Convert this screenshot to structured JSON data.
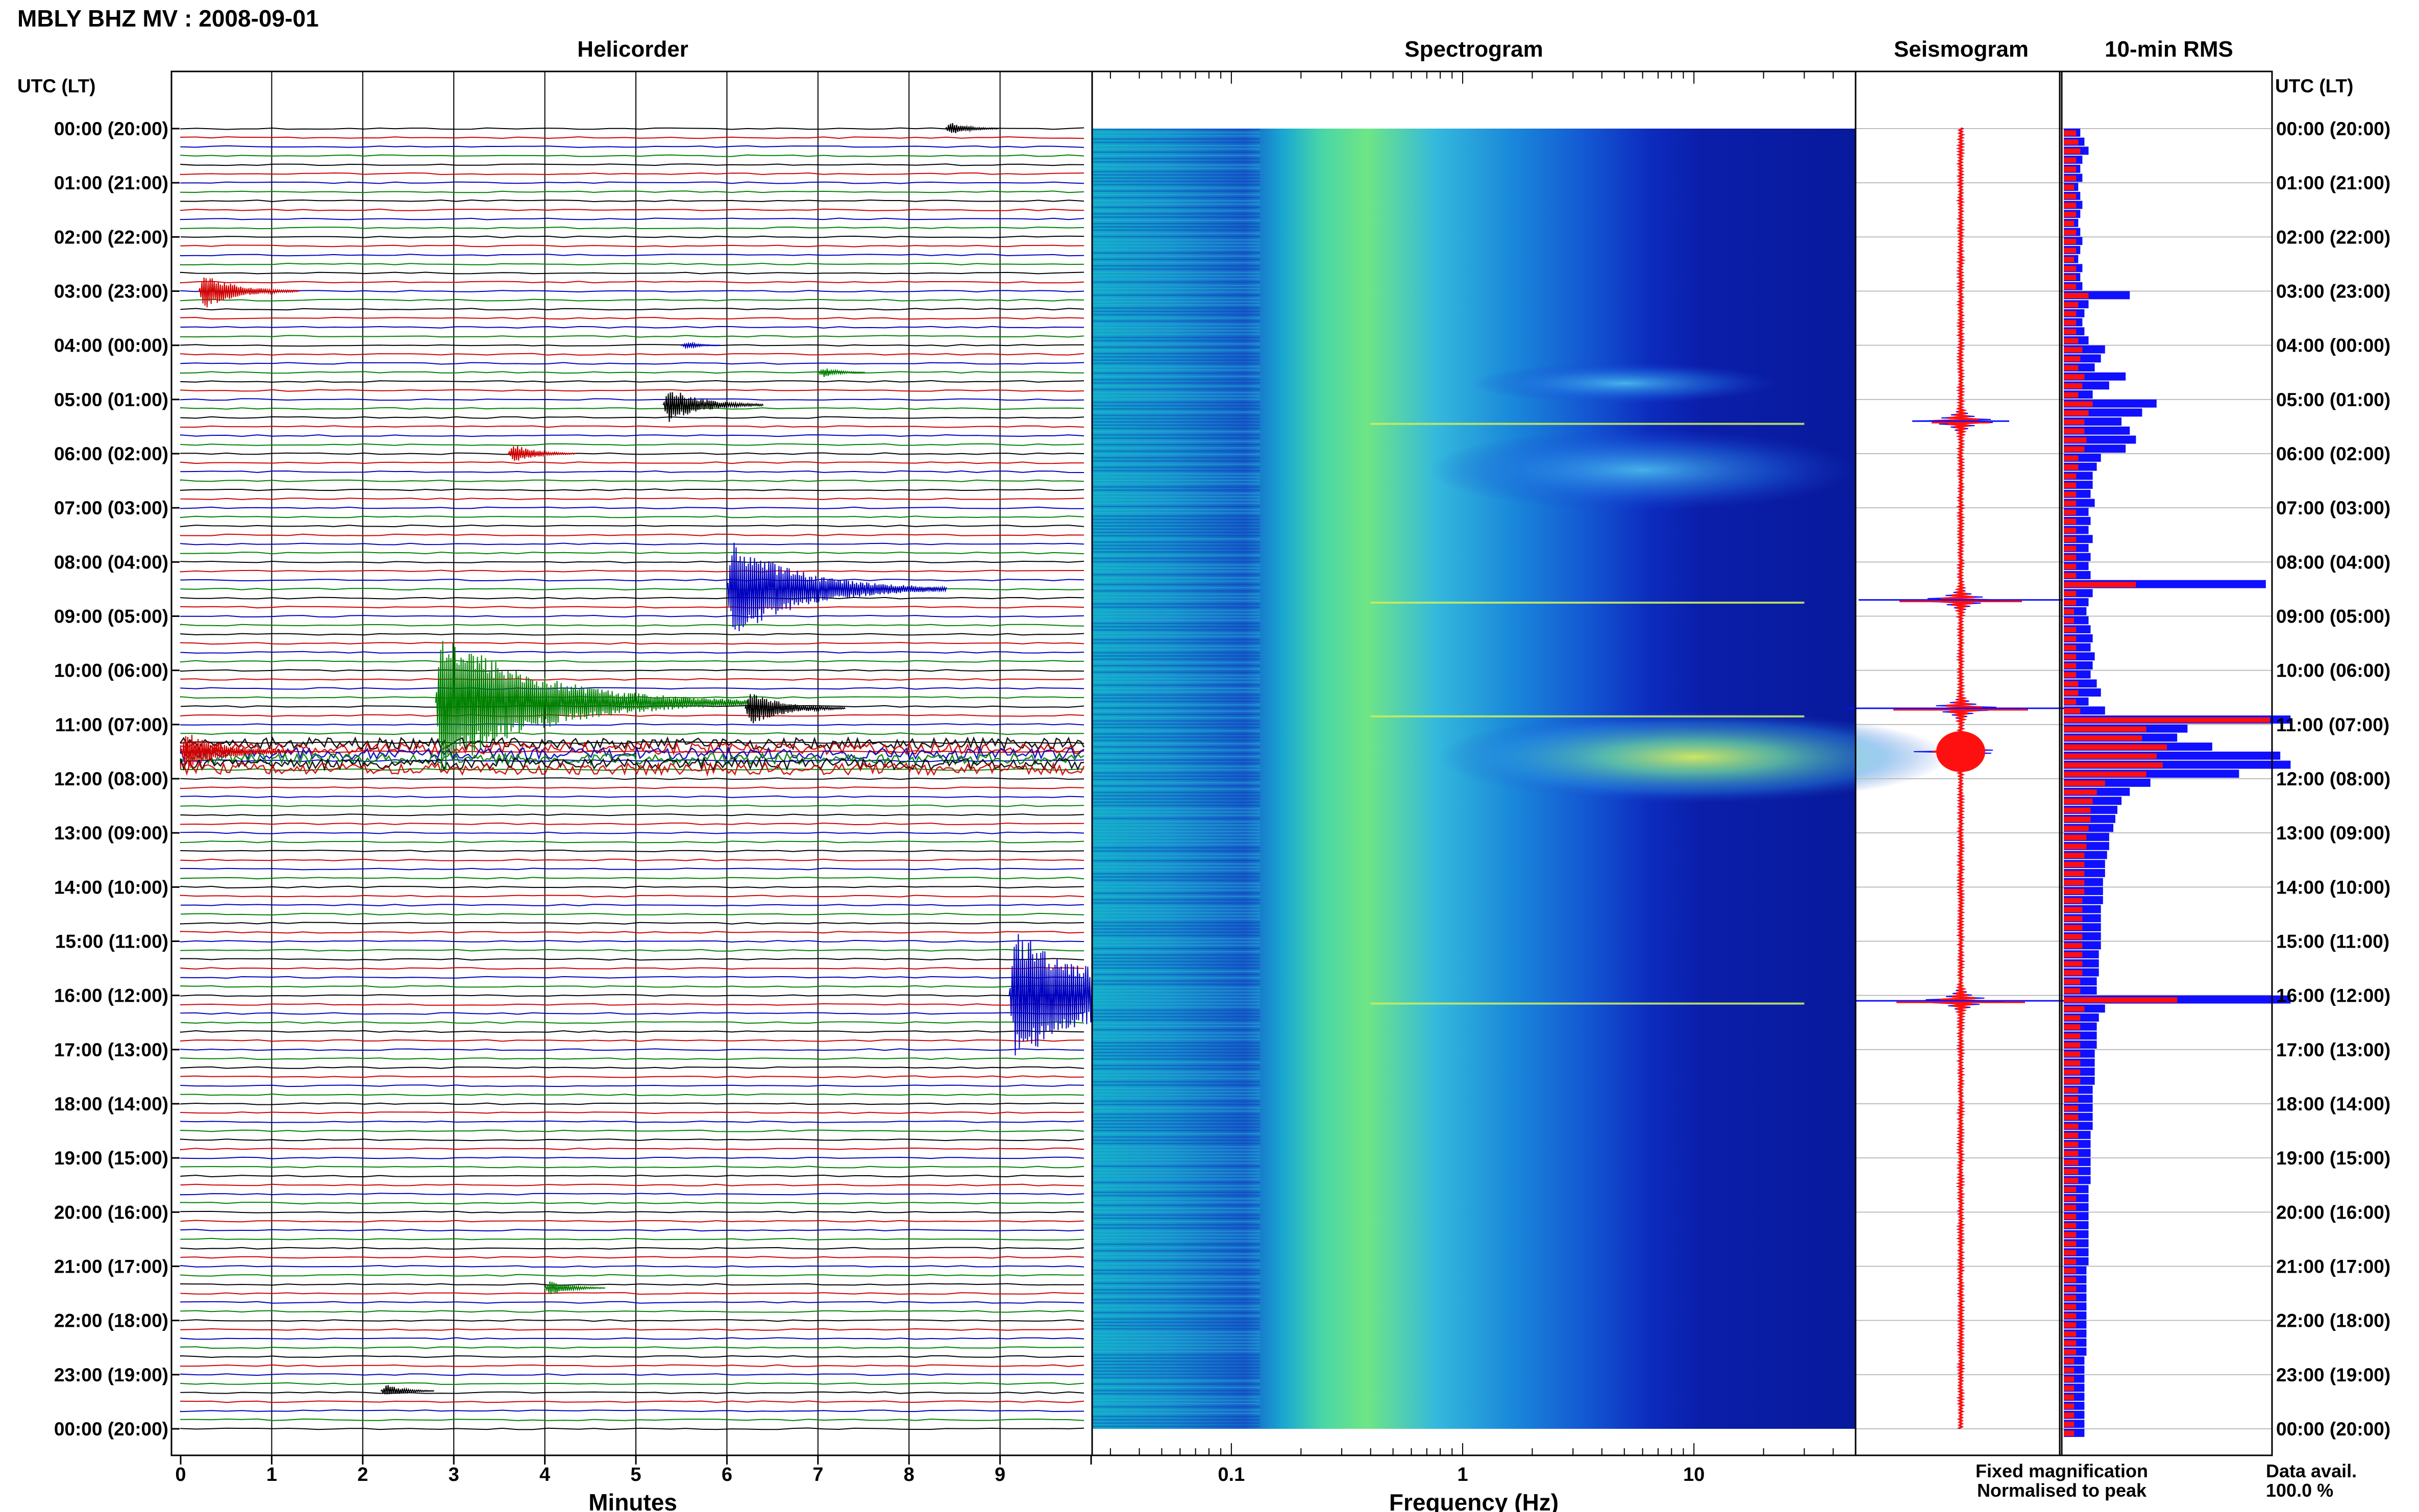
{
  "header": {
    "title": "MBLY BHZ MV : 2008-09-01"
  },
  "panels": {
    "helicorder": "Helicorder",
    "spectrogram": "Spectrogram",
    "seismogram": "Seismogram",
    "rms": "10-min RMS"
  },
  "axis": {
    "time_label_left": "UTC (LT)",
    "time_label_right": "UTC (LT)",
    "helicorder_xlabel": "Minutes",
    "spectrogram_xlabel": "Frequency (Hz)"
  },
  "legend": {
    "fixed": "Fixed magnification",
    "normalised": "Normalised to peak",
    "fixed_color": "#1010ff",
    "normalised_color": "#ff1010"
  },
  "data_avail": {
    "label": "Data avail.",
    "value": "100.0 %"
  },
  "chart_data": {
    "type": "heatmap",
    "station": "MBLY BHZ MV",
    "date": "2008-09-01",
    "time_ticks": [
      "00:00 (20:00)",
      "01:00 (21:00)",
      "02:00 (22:00)",
      "03:00 (23:00)",
      "04:00 (00:00)",
      "05:00 (01:00)",
      "06:00 (02:00)",
      "07:00 (03:00)",
      "08:00 (04:00)",
      "09:00 (05:00)",
      "10:00 (06:00)",
      "11:00 (07:00)",
      "12:00 (08:00)",
      "13:00 (09:00)",
      "14:00 (10:00)",
      "15:00 (11:00)",
      "16:00 (12:00)",
      "17:00 (13:00)",
      "18:00 (14:00)",
      "19:00 (15:00)",
      "20:00 (16:00)",
      "21:00 (17:00)",
      "22:00 (18:00)",
      "23:00 (19:00)",
      "00:00 (20:00)"
    ],
    "helicorder": {
      "x_ticks": [
        "0",
        "1",
        "2",
        "3",
        "4",
        "5",
        "6",
        "7",
        "8",
        "9"
      ],
      "xlim": [
        0,
        10
      ],
      "line_minutes": 10,
      "trace_colors": [
        "#000000",
        "#d00000",
        "#0000c0",
        "#008000"
      ],
      "events": [
        {
          "hour": 0.0,
          "minute": 8.4,
          "amp": 0.25
        },
        {
          "hour": 3.0,
          "minute": 0.2,
          "amp": 0.6
        },
        {
          "hour": 4.0,
          "minute": 5.5,
          "amp": 0.15
        },
        {
          "hour": 4.5,
          "minute": 7.0,
          "amp": 0.2
        },
        {
          "hour": 5.1,
          "minute": 5.3,
          "amp": 0.6
        },
        {
          "hour": 6.0,
          "minute": 3.6,
          "amp": 0.35
        },
        {
          "hour": 8.5,
          "minute": 6.0,
          "amp": 1.5
        },
        {
          "hour": 10.6,
          "minute": 2.8,
          "amp": 2.2
        },
        {
          "hour": 10.7,
          "minute": 6.2,
          "amp": 0.6
        },
        {
          "hour": 11.5,
          "minute": 0.0,
          "amp": 0.7
        },
        {
          "hour": 16.0,
          "minute": 9.1,
          "amp": 2.0
        },
        {
          "hour": 21.4,
          "minute": 4.0,
          "amp": 0.3
        },
        {
          "hour": 23.3,
          "minute": 2.2,
          "amp": 0.25
        }
      ]
    },
    "spectrogram": {
      "x_ticks": [
        "0.1",
        "1",
        "10"
      ],
      "xlim_hz": [
        0.025,
        50
      ],
      "scale": "log"
    },
    "seismogram": {
      "events_hour": [
        5.4,
        8.7,
        10.7,
        11.5,
        16.1
      ]
    },
    "rms": {
      "bin_minutes": 10,
      "fixed": [
        0.08,
        0.1,
        0.12,
        0.09,
        0.08,
        0.09,
        0.07,
        0.08,
        0.09,
        0.08,
        0.07,
        0.08,
        0.09,
        0.08,
        0.07,
        0.09,
        0.08,
        0.09,
        0.32,
        0.12,
        0.1,
        0.09,
        0.1,
        0.12,
        0.2,
        0.18,
        0.15,
        0.3,
        0.22,
        0.14,
        0.45,
        0.38,
        0.28,
        0.32,
        0.35,
        0.3,
        0.18,
        0.16,
        0.14,
        0.14,
        0.13,
        0.15,
        0.12,
        0.13,
        0.12,
        0.14,
        0.12,
        0.13,
        0.12,
        0.13,
        0.98,
        0.14,
        0.12,
        0.11,
        0.12,
        0.13,
        0.14,
        0.13,
        0.15,
        0.14,
        0.13,
        0.16,
        0.18,
        0.12,
        0.2,
        1.1,
        0.6,
        0.55,
        0.72,
        1.05,
        1.1,
        0.85,
        0.42,
        0.32,
        0.28,
        0.26,
        0.25,
        0.24,
        0.22,
        0.22,
        0.21,
        0.2,
        0.2,
        0.19,
        0.19,
        0.19,
        0.18,
        0.18,
        0.18,
        0.18,
        0.18,
        0.17,
        0.17,
        0.17,
        0.16,
        0.16,
        1.1,
        0.2,
        0.17,
        0.16,
        0.16,
        0.16,
        0.15,
        0.15,
        0.15,
        0.15,
        0.14,
        0.14,
        0.14,
        0.14,
        0.14,
        0.13,
        0.13,
        0.13,
        0.13,
        0.13,
        0.13,
        0.12,
        0.12,
        0.12,
        0.12,
        0.12,
        0.12,
        0.12,
        0.12,
        0.12,
        0.11,
        0.11,
        0.11,
        0.11,
        0.11,
        0.11,
        0.11,
        0.11,
        0.11,
        0.11,
        0.1,
        0.1,
        0.1,
        0.1,
        0.1,
        0.1,
        0.1,
        0.1,
        0.1
      ],
      "normalised": [
        0.06,
        0.07,
        0.08,
        0.06,
        0.06,
        0.06,
        0.05,
        0.06,
        0.06,
        0.06,
        0.05,
        0.06,
        0.06,
        0.06,
        0.05,
        0.06,
        0.06,
        0.06,
        0.12,
        0.07,
        0.06,
        0.06,
        0.06,
        0.07,
        0.09,
        0.08,
        0.07,
        0.1,
        0.09,
        0.07,
        0.14,
        0.12,
        0.1,
        0.1,
        0.11,
        0.1,
        0.07,
        0.07,
        0.06,
        0.06,
        0.06,
        0.06,
        0.06,
        0.06,
        0.06,
        0.06,
        0.06,
        0.06,
        0.06,
        0.06,
        0.35,
        0.06,
        0.06,
        0.05,
        0.05,
        0.06,
        0.06,
        0.06,
        0.06,
        0.06,
        0.06,
        0.07,
        0.07,
        0.06,
        0.08,
        1.0,
        0.4,
        0.38,
        0.5,
        0.45,
        0.48,
        0.4,
        0.2,
        0.16,
        0.14,
        0.13,
        0.13,
        0.12,
        0.11,
        0.11,
        0.1,
        0.1,
        0.1,
        0.1,
        0.1,
        0.09,
        0.09,
        0.09,
        0.09,
        0.09,
        0.09,
        0.09,
        0.09,
        0.09,
        0.08,
        0.08,
        0.55,
        0.1,
        0.08,
        0.08,
        0.08,
        0.08,
        0.08,
        0.08,
        0.08,
        0.08,
        0.07,
        0.07,
        0.07,
        0.07,
        0.07,
        0.07,
        0.07,
        0.07,
        0.07,
        0.07,
        0.07,
        0.06,
        0.06,
        0.06,
        0.06,
        0.06,
        0.06,
        0.06,
        0.06,
        0.06,
        0.06,
        0.06,
        0.06,
        0.06,
        0.06,
        0.06,
        0.06,
        0.06,
        0.06,
        0.06,
        0.05,
        0.05,
        0.05,
        0.05,
        0.05,
        0.05,
        0.05,
        0.05,
        0.05
      ]
    }
  }
}
